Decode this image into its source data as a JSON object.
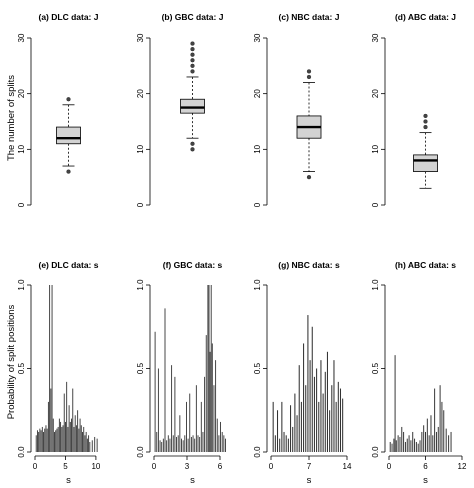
{
  "figure": {
    "row1_ylabel": "The number of splits",
    "row2_ylabel": "Probability of split positions",
    "row2_xlabel": "s"
  },
  "chart_data": [
    {
      "type": "box",
      "title": "(a) DLC data: J",
      "ylim": [
        0,
        30
      ],
      "yticks": [
        0,
        10,
        20,
        30
      ],
      "box": {
        "q1": 11,
        "median": 12,
        "q3": 14,
        "whisker_low": 7,
        "whisker_high": 18,
        "outliers": [
          6,
          19
        ]
      }
    },
    {
      "type": "box",
      "title": "(b) GBC data: J",
      "ylim": [
        0,
        30
      ],
      "yticks": [
        0,
        10,
        20,
        30
      ],
      "box": {
        "q1": 16.5,
        "median": 17.5,
        "q3": 19,
        "whisker_low": 12,
        "whisker_high": 23,
        "outliers": [
          10,
          11,
          24,
          25,
          26,
          27,
          28,
          29
        ]
      }
    },
    {
      "type": "box",
      "title": "(c) NBC data: J",
      "ylim": [
        0,
        30
      ],
      "yticks": [
        0,
        10,
        20,
        30
      ],
      "box": {
        "q1": 12,
        "median": 14,
        "q3": 16,
        "whisker_low": 6,
        "whisker_high": 22,
        "outliers": [
          5,
          23,
          24
        ]
      }
    },
    {
      "type": "box",
      "title": "(d) ABC data: J",
      "ylim": [
        0,
        30
      ],
      "yticks": [
        0,
        10,
        20,
        30
      ],
      "box": {
        "q1": 6,
        "median": 8,
        "q3": 9,
        "whisker_low": 3,
        "whisker_high": 13,
        "outliers": [
          14,
          15,
          16
        ]
      }
    },
    {
      "type": "bar",
      "title": "(e) DLC data: s",
      "xlim": [
        0,
        11
      ],
      "xticks": [
        0,
        5,
        10
      ],
      "ylim": [
        0,
        1
      ],
      "yticks": [
        0.0,
        0.5,
        1.0
      ],
      "x": [
        0.2,
        0.4,
        0.6,
        0.8,
        1.0,
        1.2,
        1.4,
        1.6,
        1.8,
        2.0,
        2.2,
        2.4,
        2.6,
        2.8,
        3.0,
        3.2,
        3.4,
        3.6,
        3.8,
        4.0,
        4.2,
        4.4,
        4.6,
        4.8,
        5.0,
        5.2,
        5.4,
        5.6,
        5.8,
        6.0,
        6.2,
        6.4,
        6.6,
        6.8,
        7.0,
        7.2,
        7.4,
        7.6,
        7.8,
        8.0,
        8.2,
        8.4,
        8.6,
        8.8,
        9.0,
        9.4,
        9.8,
        10.2
      ],
      "values": [
        0.1,
        0.13,
        0.12,
        0.14,
        0.13,
        0.15,
        0.12,
        0.14,
        0.16,
        0.14,
        0.3,
        1.0,
        0.38,
        1.0,
        0.2,
        0.12,
        0.13,
        0.14,
        0.15,
        0.2,
        0.18,
        0.15,
        0.16,
        0.35,
        0.18,
        0.42,
        0.15,
        0.28,
        0.18,
        0.2,
        0.38,
        0.15,
        0.22,
        0.16,
        0.25,
        0.14,
        0.2,
        0.16,
        0.12,
        0.15,
        0.1,
        0.12,
        0.08,
        0.1,
        0.06,
        0.07,
        0.09,
        0.08
      ]
    },
    {
      "type": "bar",
      "title": "(f) GBC data: s",
      "xlim": [
        0,
        7
      ],
      "xticks": [
        0,
        3,
        6
      ],
      "ylim": [
        0,
        1
      ],
      "yticks": [
        0.0,
        0.5,
        1.0
      ],
      "x": [
        0.1,
        0.25,
        0.4,
        0.55,
        0.7,
        0.85,
        1.0,
        1.15,
        1.3,
        1.45,
        1.6,
        1.75,
        1.9,
        2.05,
        2.2,
        2.35,
        2.5,
        2.65,
        2.8,
        2.95,
        3.1,
        3.25,
        3.4,
        3.55,
        3.7,
        3.85,
        4.0,
        4.15,
        4.3,
        4.45,
        4.6,
        4.75,
        4.9,
        5.0,
        5.1,
        5.2,
        5.3,
        5.45,
        5.6,
        5.75,
        5.9,
        6.05,
        6.2,
        6.35,
        6.5
      ],
      "values": [
        0.72,
        0.12,
        0.5,
        0.07,
        0.06,
        0.08,
        0.86,
        0.07,
        0.1,
        0.08,
        0.52,
        0.1,
        0.45,
        0.09,
        0.1,
        0.22,
        0.08,
        0.07,
        0.1,
        0.3,
        0.08,
        0.35,
        0.09,
        0.1,
        0.08,
        0.4,
        0.1,
        0.09,
        0.3,
        0.12,
        0.45,
        0.7,
        1.0,
        1.0,
        0.6,
        1.0,
        0.65,
        0.4,
        0.55,
        0.2,
        0.1,
        0.18,
        0.12,
        0.1,
        0.08
      ]
    },
    {
      "type": "bar",
      "title": "(g) NBC data: s",
      "xlim": [
        0,
        14
      ],
      "xticks": [
        0,
        7,
        14
      ],
      "ylim": [
        0,
        1
      ],
      "yticks": [
        0.0,
        0.5,
        1.0
      ],
      "x": [
        0.4,
        0.8,
        1.2,
        1.6,
        2.0,
        2.4,
        2.8,
        3.2,
        3.6,
        4.0,
        4.4,
        4.8,
        5.2,
        5.6,
        6.0,
        6.4,
        6.8,
        7.2,
        7.6,
        8.0,
        8.4,
        8.8,
        9.2,
        9.6,
        10.0,
        10.4,
        10.8,
        11.2,
        11.6,
        12.0,
        12.4,
        12.8,
        13.2
      ],
      "values": [
        0.3,
        0.1,
        0.25,
        0.08,
        0.3,
        0.12,
        0.1,
        0.08,
        0.28,
        0.15,
        0.35,
        0.22,
        0.52,
        0.3,
        0.65,
        0.4,
        0.82,
        0.55,
        0.75,
        0.45,
        0.5,
        0.3,
        0.55,
        0.35,
        0.48,
        0.6,
        0.25,
        0.4,
        0.55,
        0.3,
        0.42,
        0.38,
        0.32
      ]
    },
    {
      "type": "bar",
      "title": "(h) ABC data: s",
      "xlim": [
        0,
        12
      ],
      "xticks": [
        0,
        6,
        12
      ],
      "ylim": [
        0,
        1
      ],
      "yticks": [
        0.0,
        0.5,
        1.0
      ],
      "x": [
        0.2,
        0.5,
        0.8,
        1.0,
        1.2,
        1.5,
        1.8,
        2.1,
        2.4,
        2.7,
        3.0,
        3.3,
        3.6,
        3.9,
        4.2,
        4.5,
        4.8,
        5.1,
        5.4,
        5.7,
        6.0,
        6.3,
        6.6,
        6.9,
        7.2,
        7.5,
        7.8,
        8.1,
        8.4,
        8.7,
        9.0,
        9.4,
        9.8,
        10.2
      ],
      "values": [
        0.06,
        0.05,
        0.08,
        0.58,
        0.07,
        0.1,
        0.09,
        0.15,
        0.12,
        0.06,
        0.08,
        0.1,
        0.07,
        0.12,
        0.08,
        0.06,
        0.05,
        0.07,
        0.12,
        0.16,
        0.12,
        0.2,
        0.1,
        0.22,
        0.1,
        0.38,
        0.12,
        0.15,
        0.4,
        0.3,
        0.25,
        0.14,
        0.1,
        0.12
      ]
    }
  ]
}
